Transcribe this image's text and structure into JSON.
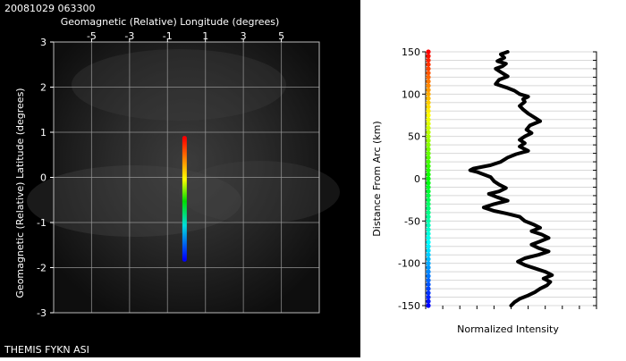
{
  "sky_image": {
    "timestamp": "20081029 063300",
    "caption": "THEMIS FYKN ASI"
  },
  "chart_data": [
    {
      "type": "scatter",
      "panel": "sky-map",
      "xlabel": "Geomagnetic (Relative) Longitude (degrees)",
      "ylabel": "Geomagnetic (Relative) Latitude (degrees)",
      "xlim": [
        -7,
        7
      ],
      "ylim": [
        -3,
        3
      ],
      "x_ticks": [
        "-5",
        "-3",
        "-1",
        "1",
        "3",
        "5"
      ],
      "y_ticks": [
        "3",
        "2",
        "1",
        "0",
        "-1",
        "-2",
        "-3"
      ],
      "x_tick_values": [
        -5,
        -3,
        -1,
        1,
        3,
        5
      ],
      "y_tick_values": [
        3,
        2,
        1,
        0,
        -1,
        -2,
        -3
      ],
      "grid": true,
      "series": [
        {
          "x": [
            -0.1,
            -0.1
          ],
          "y": [
            0.87,
            -1.82
          ],
          "colormap": "rainbow",
          "color_top": "#ff0000",
          "color_bottom": "#0000ff"
        }
      ]
    },
    {
      "type": "line",
      "panel": "intensity-profile",
      "xlabel": "Normalized Intensity",
      "ylabel": "Distance From Arc (km)",
      "ylim": [
        -150,
        150
      ],
      "y_ticks": [
        "150",
        "100",
        "50",
        "0",
        "-50",
        "-100",
        "-150"
      ],
      "y_tick_values": [
        150,
        100,
        50,
        0,
        -50,
        -100,
        -150
      ],
      "grid": true,
      "line_color": "#000000",
      "series": [
        {
          "y": [
            150,
            147,
            143,
            139,
            136,
            133,
            130,
            126,
            121,
            117,
            112,
            108,
            104,
            100,
            97,
            94,
            91,
            86,
            82,
            77,
            72,
            68,
            63,
            58,
            54,
            50,
            46,
            42,
            38,
            33,
            29,
            25,
            20,
            16,
            12,
            10,
            8,
            5,
            2,
            -3,
            -7,
            -11,
            -15,
            -18,
            -22,
            -26,
            -30,
            -34,
            -38,
            -41,
            -45,
            -50,
            -54,
            -58,
            -62,
            -66,
            -70,
            -74,
            -78,
            -82,
            -86,
            -90,
            -94,
            -98,
            -102,
            -106,
            -110,
            -114,
            -118,
            -122,
            -126,
            -130,
            -134,
            -138,
            -142,
            -146,
            -150
          ],
          "x": [
            0.48,
            0.44,
            0.46,
            0.42,
            0.47,
            0.45,
            0.41,
            0.44,
            0.48,
            0.43,
            0.41,
            0.47,
            0.52,
            0.55,
            0.6,
            0.57,
            0.58,
            0.55,
            0.57,
            0.6,
            0.64,
            0.67,
            0.61,
            0.59,
            0.62,
            0.58,
            0.55,
            0.58,
            0.55,
            0.6,
            0.53,
            0.48,
            0.44,
            0.38,
            0.28,
            0.26,
            0.3,
            0.34,
            0.38,
            0.4,
            0.43,
            0.47,
            0.43,
            0.37,
            0.42,
            0.48,
            0.4,
            0.34,
            0.4,
            0.47,
            0.55,
            0.58,
            0.63,
            0.67,
            0.62,
            0.68,
            0.72,
            0.67,
            0.62,
            0.66,
            0.72,
            0.66,
            0.58,
            0.54,
            0.58,
            0.64,
            0.7,
            0.74,
            0.69,
            0.73,
            0.71,
            0.67,
            0.64,
            0.6,
            0.55,
            0.52,
            0.5
          ]
        }
      ]
    }
  ]
}
